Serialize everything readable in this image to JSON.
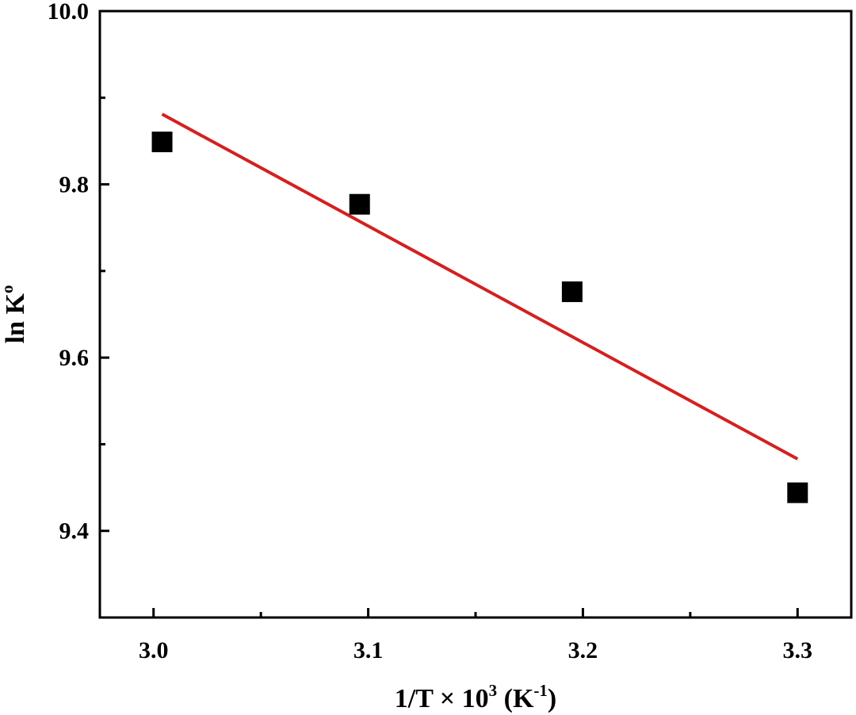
{
  "chart_data": {
    "type": "scatter",
    "xlabel": {
      "main": "1/T × 10",
      "exp": "3",
      "unit_open": " (K",
      "unit_exp": "-1",
      "unit_close": ")"
    },
    "ylabel": {
      "main": "ln K",
      "exp": "o"
    },
    "xlim": [
      2.975,
      3.325
    ],
    "ylim": [
      9.3,
      10.0
    ],
    "xticks": [
      3.0,
      3.1,
      3.2,
      3.3
    ],
    "xtick_labels": [
      "3.0",
      "3.1",
      "3.2",
      "3.3"
    ],
    "xminor": [
      3.05,
      3.15,
      3.25
    ],
    "yticks": [
      9.4,
      9.6,
      9.8,
      10.0
    ],
    "ytick_labels": [
      "9.4",
      "9.6",
      "9.8",
      "10.0"
    ],
    "yminor": [
      9.5,
      9.7,
      9.9
    ],
    "grid": false,
    "series": [
      {
        "kind": "scatter",
        "marker": "square",
        "color": "#000000",
        "x": [
          3.004,
          3.096,
          3.195,
          3.3
        ],
        "y": [
          9.849,
          9.777,
          9.676,
          9.444
        ]
      },
      {
        "kind": "fit-line",
        "color": "#d42020",
        "x": [
          3.004,
          3.3
        ],
        "y": [
          9.881,
          9.483
        ]
      }
    ]
  }
}
